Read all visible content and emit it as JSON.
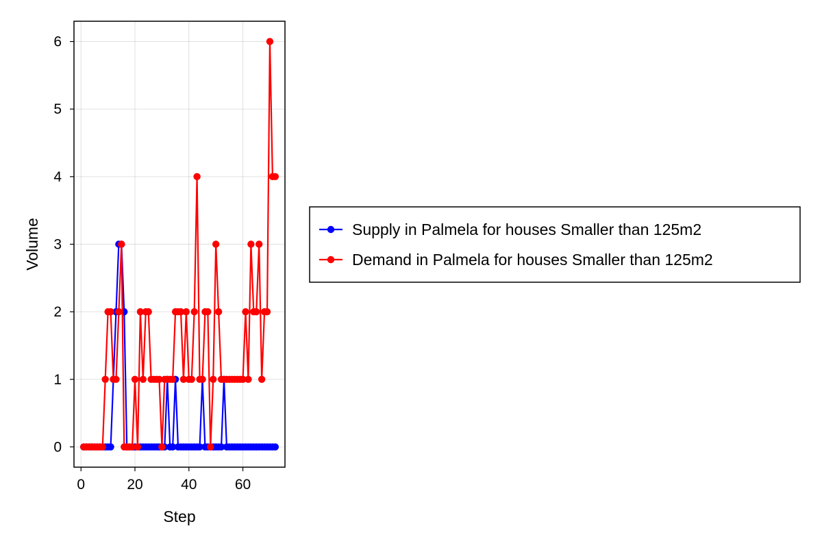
{
  "chart_data": {
    "type": "line",
    "title": "",
    "xlabel": "Step",
    "ylabel": "Volume",
    "xlim": [
      -2.6,
      75.6
    ],
    "ylim": [
      -0.3,
      6.3
    ],
    "xticks": [
      0,
      20,
      40,
      60
    ],
    "yticks": [
      0,
      1,
      2,
      3,
      4,
      5,
      6
    ],
    "grid": true,
    "legend_position": "right",
    "series": [
      {
        "name": "Supply in Palmela for houses Smaller than 125m2",
        "color": "#0000ff",
        "marker": "circle",
        "x": [
          1,
          2,
          3,
          4,
          5,
          6,
          7,
          8,
          9,
          10,
          11,
          12,
          13,
          14,
          15,
          16,
          17,
          18,
          19,
          20,
          21,
          22,
          23,
          24,
          25,
          26,
          27,
          28,
          29,
          30,
          31,
          32,
          33,
          34,
          35,
          36,
          37,
          38,
          39,
          40,
          41,
          42,
          43,
          44,
          45,
          46,
          47,
          48,
          49,
          50,
          51,
          52,
          53,
          54,
          55,
          56,
          57,
          58,
          59,
          60,
          61,
          62,
          63,
          64,
          65,
          66,
          67,
          68,
          69,
          70,
          71,
          72
        ],
        "y": [
          0,
          0,
          0,
          0,
          0,
          0,
          0,
          0,
          0,
          0,
          0,
          1,
          2,
          3,
          3,
          2,
          0,
          0,
          0,
          0,
          0,
          0,
          0,
          0,
          0,
          0,
          0,
          0,
          0,
          0,
          0,
          1,
          0,
          0,
          1,
          0,
          0,
          0,
          0,
          0,
          0,
          0,
          0,
          0,
          1,
          0,
          0,
          0,
          0,
          0,
          0,
          0,
          1,
          0,
          0,
          0,
          0,
          0,
          0,
          0,
          0,
          0,
          0,
          0,
          0,
          0,
          0,
          0,
          0,
          0,
          0,
          0
        ]
      },
      {
        "name": "Demand in Palmela for houses Smaller than 125m2",
        "color": "#ff0000",
        "marker": "circle",
        "x": [
          1,
          2,
          3,
          4,
          5,
          6,
          7,
          8,
          9,
          10,
          11,
          12,
          13,
          14,
          15,
          16,
          17,
          18,
          19,
          20,
          21,
          22,
          23,
          24,
          25,
          26,
          27,
          28,
          29,
          30,
          31,
          32,
          33,
          34,
          35,
          36,
          37,
          38,
          39,
          40,
          41,
          42,
          43,
          44,
          45,
          46,
          47,
          48,
          49,
          50,
          51,
          52,
          53,
          54,
          55,
          56,
          57,
          58,
          59,
          60,
          61,
          62,
          63,
          64,
          65,
          66,
          67,
          68,
          69,
          70,
          71,
          72
        ],
        "y": [
          0,
          0,
          0,
          0,
          0,
          0,
          0,
          0,
          1,
          2,
          2,
          1,
          1,
          2,
          3,
          0,
          0,
          0,
          0,
          1,
          0,
          2,
          1,
          2,
          2,
          1,
          1,
          1,
          1,
          0,
          1,
          1,
          1,
          1,
          2,
          2,
          2,
          1,
          2,
          1,
          1,
          2,
          4,
          1,
          1,
          2,
          2,
          0,
          1,
          3,
          2,
          1,
          1,
          1,
          1,
          1,
          1,
          1,
          1,
          1,
          2,
          1,
          3,
          2,
          2,
          3,
          1,
          2,
          2,
          6,
          4,
          4
        ]
      }
    ]
  }
}
